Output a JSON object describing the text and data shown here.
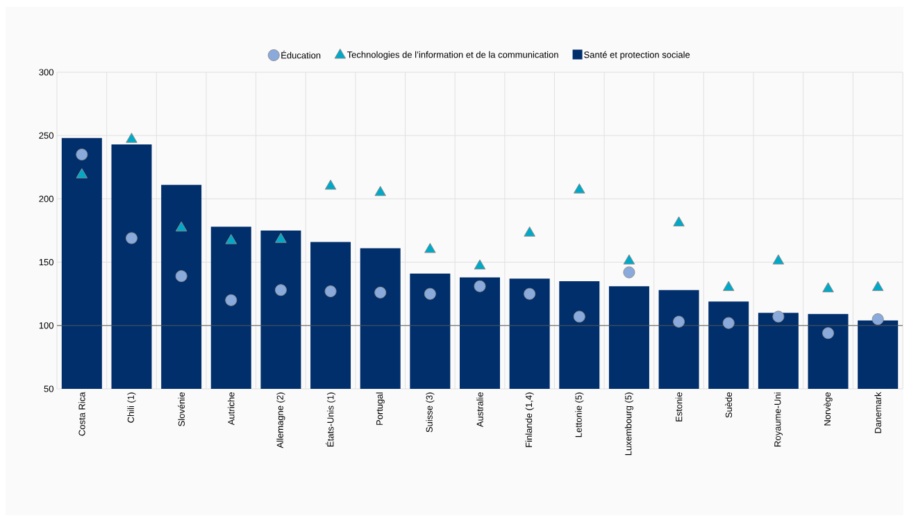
{
  "chart_data": {
    "type": "bar",
    "categories": [
      "Costa Rica",
      "Chili (1)",
      "Slovénie",
      "Autriche",
      "Allemagne (2)",
      "États-Unis (1)",
      "Portugal",
      "Suisse (3)",
      "Australie",
      "Finlande (1,4)",
      "Lettonie (5)",
      "Luxembourg (5)",
      "Estonie",
      "Suède",
      "Royaume-Uni",
      "Norvège",
      "Danemark"
    ],
    "series": [
      {
        "name": "Éducation",
        "type": "scatter",
        "marker": "circle",
        "color": "#8aaadc",
        "values": [
          235,
          169,
          139,
          120,
          128,
          127,
          126,
          125,
          131,
          125,
          107,
          142,
          103,
          102,
          107,
          94,
          105
        ]
      },
      {
        "name": "Technologies de l’information et de la communication",
        "type": "scatter",
        "marker": "triangle",
        "color": "#00a9c7",
        "values": [
          219,
          247,
          177,
          167,
          168,
          210,
          205,
          160,
          147,
          173,
          207,
          151,
          181,
          130,
          151,
          129,
          130
        ]
      },
      {
        "name": "Santé et protection sociale",
        "color": "#002f6c",
        "values": [
          248,
          243,
          211,
          178,
          175,
          166,
          161,
          141,
          138,
          137,
          135,
          131,
          128,
          119,
          110,
          109,
          104
        ]
      }
    ],
    "ylim": [
      50,
      300
    ],
    "yticks": [
      50,
      100,
      150,
      200,
      250,
      300
    ],
    "ref_lines": [
      {
        "axis": "y",
        "value": 100,
        "color": "#555555"
      }
    ],
    "grid": true,
    "legend": "top"
  }
}
